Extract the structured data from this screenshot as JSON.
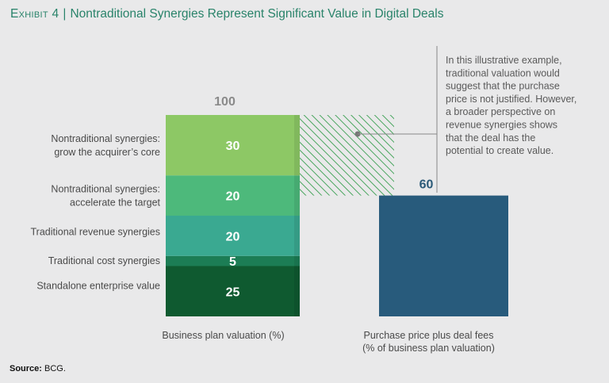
{
  "header": {
    "exhibit": "Exhibit 4",
    "separator": "|",
    "title": "Nontraditional Synergies Represent Significant Value in Digital Deals"
  },
  "chart_data": {
    "type": "bar",
    "stacked_bar": {
      "label": "Business plan valuation (%)",
      "total": 100,
      "segments": [
        {
          "name": "Standalone enterprise value",
          "value": 25,
          "color": "#0f5a30"
        },
        {
          "name": "Traditional cost synergies",
          "value": 5,
          "color": "#1c7d55"
        },
        {
          "name": "Traditional revenue synergies",
          "value": 20,
          "color": "#3aa991"
        },
        {
          "name": "Nontraditional synergies: accelerate the target",
          "value": 20,
          "color": "#4db97b"
        },
        {
          "name": "Nontraditional synergies: grow the acquirer’s core",
          "value": 30,
          "color": "#8dc865"
        }
      ]
    },
    "comparison_bar": {
      "label_lines": [
        "Purchase price plus deal fees",
        "(% of business plan valuation)"
      ],
      "value": 60,
      "color": "#285b7c",
      "value_label_color": "#2b5a78"
    },
    "hatched_gap": {
      "from": 60,
      "to": 100,
      "color": "#4aa65f"
    },
    "annotation_lines": [
      "In this illustrative example,",
      "traditional valuation would",
      "suggest that the purchase",
      "price is not justified. However,",
      "a broader perspective on",
      "revenue synergies shows",
      "that the deal has the",
      "potential to create value."
    ],
    "ylim": [
      0,
      100
    ]
  },
  "source": {
    "label": "Source:",
    "text": "BCG."
  }
}
